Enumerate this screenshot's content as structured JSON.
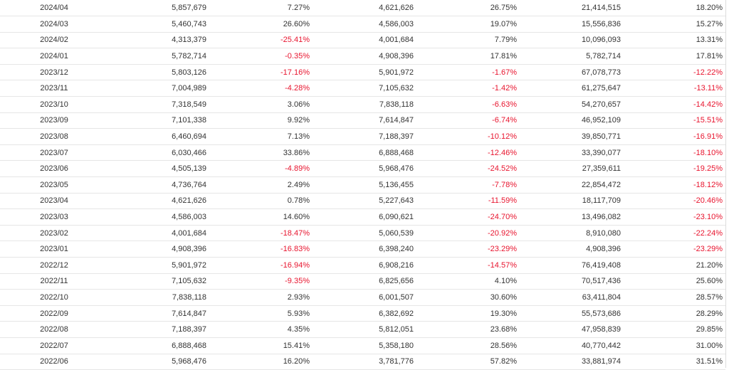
{
  "colors": {
    "negative": "#e8142e",
    "text": "#333333",
    "grid": "#e6e6e6"
  },
  "table": {
    "rows": [
      {
        "period": "2024/04",
        "c1": "5,857,679",
        "c2": "7.27%",
        "c3": "4,621,626",
        "c4": "26.75%",
        "c5": "21,414,515",
        "c6": "18.20%"
      },
      {
        "period": "2024/03",
        "c1": "5,460,743",
        "c2": "26.60%",
        "c3": "4,586,003",
        "c4": "19.07%",
        "c5": "15,556,836",
        "c6": "15.27%"
      },
      {
        "period": "2024/02",
        "c1": "4,313,379",
        "c2": "-25.41%",
        "c3": "4,001,684",
        "c4": "7.79%",
        "c5": "10,096,093",
        "c6": "13.31%"
      },
      {
        "period": "2024/01",
        "c1": "5,782,714",
        "c2": "-0.35%",
        "c3": "4,908,396",
        "c4": "17.81%",
        "c5": "5,782,714",
        "c6": "17.81%"
      },
      {
        "period": "2023/12",
        "c1": "5,803,126",
        "c2": "-17.16%",
        "c3": "5,901,972",
        "c4": "-1.67%",
        "c5": "67,078,773",
        "c6": "-12.22%"
      },
      {
        "period": "2023/11",
        "c1": "7,004,989",
        "c2": "-4.28%",
        "c3": "7,105,632",
        "c4": "-1.42%",
        "c5": "61,275,647",
        "c6": "-13.11%"
      },
      {
        "period": "2023/10",
        "c1": "7,318,549",
        "c2": "3.06%",
        "c3": "7,838,118",
        "c4": "-6.63%",
        "c5": "54,270,657",
        "c6": "-14.42%"
      },
      {
        "period": "2023/09",
        "c1": "7,101,338",
        "c2": "9.92%",
        "c3": "7,614,847",
        "c4": "-6.74%",
        "c5": "46,952,109",
        "c6": "-15.51%"
      },
      {
        "period": "2023/08",
        "c1": "6,460,694",
        "c2": "7.13%",
        "c3": "7,188,397",
        "c4": "-10.12%",
        "c5": "39,850,771",
        "c6": "-16.91%"
      },
      {
        "period": "2023/07",
        "c1": "6,030,466",
        "c2": "33.86%",
        "c3": "6,888,468",
        "c4": "-12.46%",
        "c5": "33,390,077",
        "c6": "-18.10%"
      },
      {
        "period": "2023/06",
        "c1": "4,505,139",
        "c2": "-4.89%",
        "c3": "5,968,476",
        "c4": "-24.52%",
        "c5": "27,359,611",
        "c6": "-19.25%"
      },
      {
        "period": "2023/05",
        "c1": "4,736,764",
        "c2": "2.49%",
        "c3": "5,136,455",
        "c4": "-7.78%",
        "c5": "22,854,472",
        "c6": "-18.12%"
      },
      {
        "period": "2023/04",
        "c1": "4,621,626",
        "c2": "0.78%",
        "c3": "5,227,643",
        "c4": "-11.59%",
        "c5": "18,117,709",
        "c6": "-20.46%"
      },
      {
        "period": "2023/03",
        "c1": "4,586,003",
        "c2": "14.60%",
        "c3": "6,090,621",
        "c4": "-24.70%",
        "c5": "13,496,082",
        "c6": "-23.10%"
      },
      {
        "period": "2023/02",
        "c1": "4,001,684",
        "c2": "-18.47%",
        "c3": "5,060,539",
        "c4": "-20.92%",
        "c5": "8,910,080",
        "c6": "-22.24%"
      },
      {
        "period": "2023/01",
        "c1": "4,908,396",
        "c2": "-16.83%",
        "c3": "6,398,240",
        "c4": "-23.29%",
        "c5": "4,908,396",
        "c6": "-23.29%"
      },
      {
        "period": "2022/12",
        "c1": "5,901,972",
        "c2": "-16.94%",
        "c3": "6,908,216",
        "c4": "-14.57%",
        "c5": "76,419,408",
        "c6": "21.20%"
      },
      {
        "period": "2022/11",
        "c1": "7,105,632",
        "c2": "-9.35%",
        "c3": "6,825,656",
        "c4": "4.10%",
        "c5": "70,517,436",
        "c6": "25.60%"
      },
      {
        "period": "2022/10",
        "c1": "7,838,118",
        "c2": "2.93%",
        "c3": "6,001,507",
        "c4": "30.60%",
        "c5": "63,411,804",
        "c6": "28.57%"
      },
      {
        "period": "2022/09",
        "c1": "7,614,847",
        "c2": "5.93%",
        "c3": "6,382,692",
        "c4": "19.30%",
        "c5": "55,573,686",
        "c6": "28.29%"
      },
      {
        "period": "2022/08",
        "c1": "7,188,397",
        "c2": "4.35%",
        "c3": "5,812,051",
        "c4": "23.68%",
        "c5": "47,958,839",
        "c6": "29.85%"
      },
      {
        "period": "2022/07",
        "c1": "6,888,468",
        "c2": "15.41%",
        "c3": "5,358,180",
        "c4": "28.56%",
        "c5": "40,770,442",
        "c6": "31.00%"
      },
      {
        "period": "2022/06",
        "c1": "5,968,476",
        "c2": "16.20%",
        "c3": "3,781,776",
        "c4": "57.82%",
        "c5": "33,881,974",
        "c6": "31.51%"
      }
    ]
  }
}
